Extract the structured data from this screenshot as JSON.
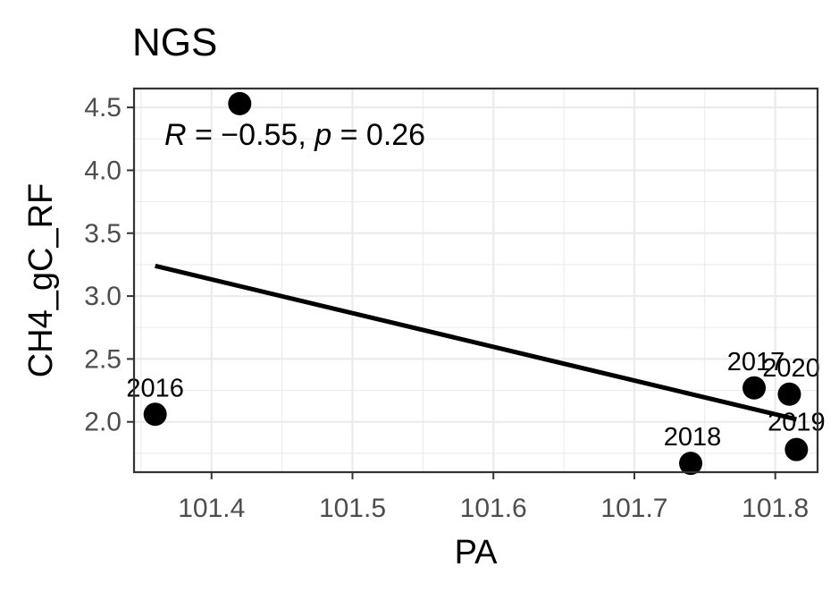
{
  "chart_data": {
    "type": "scatter",
    "title": "NGS",
    "xlabel": "PA",
    "ylabel": "CH4_gC_RF",
    "xlim": [
      101.345,
      101.83
    ],
    "ylim": [
      1.6,
      4.65
    ],
    "xticks": [
      101.4,
      101.5,
      101.6,
      101.7,
      101.8
    ],
    "yticks": [
      2.0,
      2.5,
      3.0,
      3.5,
      4.0,
      4.5
    ],
    "xtick_labels": [
      "101.4",
      "101.5",
      "101.6",
      "101.7",
      "101.8"
    ],
    "ytick_labels": [
      "2.0",
      "2.5",
      "3.0",
      "3.5",
      "4.0",
      "4.5"
    ],
    "grid": true,
    "points": [
      {
        "x": 101.36,
        "y": 2.06,
        "label": "2016"
      },
      {
        "x": 101.42,
        "y": 4.53,
        "label": ""
      },
      {
        "x": 101.785,
        "y": 2.27,
        "label": "2017"
      },
      {
        "x": 101.74,
        "y": 1.67,
        "label": "2018"
      },
      {
        "x": 101.815,
        "y": 1.78,
        "label": "2019"
      },
      {
        "x": 101.81,
        "y": 2.22,
        "label": "2020"
      }
    ],
    "regression_line": {
      "x": [
        101.36,
        101.815
      ],
      "y": [
        3.24,
        2.02
      ]
    },
    "annotation": {
      "R_symbol": "R",
      "R_text": " = −0.55, ",
      "p_symbol": "p",
      "p_text": " = 0.26"
    }
  }
}
